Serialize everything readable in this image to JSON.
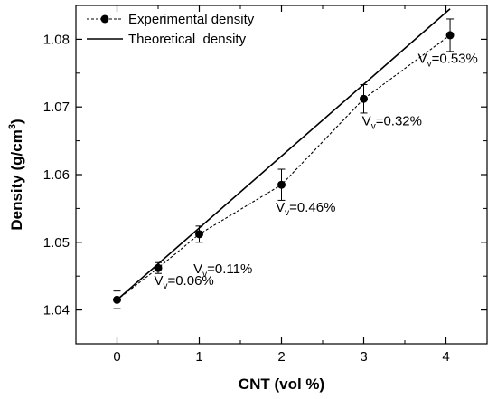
{
  "chart_data": {
    "type": "line",
    "xlabel": "CNT (vol %)",
    "ylabel": "Density (g/cm",
    "ylabel_sup": "3",
    "ylabel_close": ")",
    "xlim": [
      -0.5,
      4.5
    ],
    "ylim": [
      1.035,
      1.085
    ],
    "x_ticks": [
      0,
      1,
      2,
      3,
      4
    ],
    "x_tick_labels": [
      "0",
      "1",
      "2",
      "3",
      "4"
    ],
    "y_ticks": [
      1.04,
      1.05,
      1.06,
      1.07,
      1.08
    ],
    "y_tick_labels": [
      "1.04",
      "1.05",
      "1.06",
      "1.07",
      "1.08"
    ],
    "grid": false,
    "legend_position": "top-left",
    "series": [
      {
        "name": "Experimental density",
        "style": "dashed-with-markers",
        "color": "#000000",
        "x": [
          0,
          0.5,
          1,
          2,
          3,
          4.05
        ],
        "y": [
          1.0415,
          1.0462,
          1.0512,
          1.0585,
          1.0712,
          1.0806
        ],
        "error": [
          0.0013,
          0.0008,
          0.0012,
          0.0023,
          0.0021,
          0.0024
        ]
      },
      {
        "name": "Theoretical  density",
        "style": "solid",
        "color": "#000000",
        "x": [
          0,
          4.05
        ],
        "y": [
          1.0415,
          1.0845
        ]
      }
    ],
    "annotations": [
      {
        "main": "V",
        "sub": "v",
        "value": "=0.06%",
        "x": 0.45,
        "y": 1.0437
      },
      {
        "main": "V",
        "sub": "v",
        "value": "=0.11%",
        "x": 0.93,
        "y": 1.0454
      },
      {
        "main": "V",
        "sub": "v",
        "value": "=0.46%",
        "x": 1.93,
        "y": 1.0545
      },
      {
        "main": "V",
        "sub": "v",
        "value": "=0.32%",
        "x": 2.98,
        "y": 1.0673
      },
      {
        "main": "V",
        "sub": "v",
        "value": "=0.53%",
        "x": 3.66,
        "y": 1.0765
      }
    ]
  }
}
